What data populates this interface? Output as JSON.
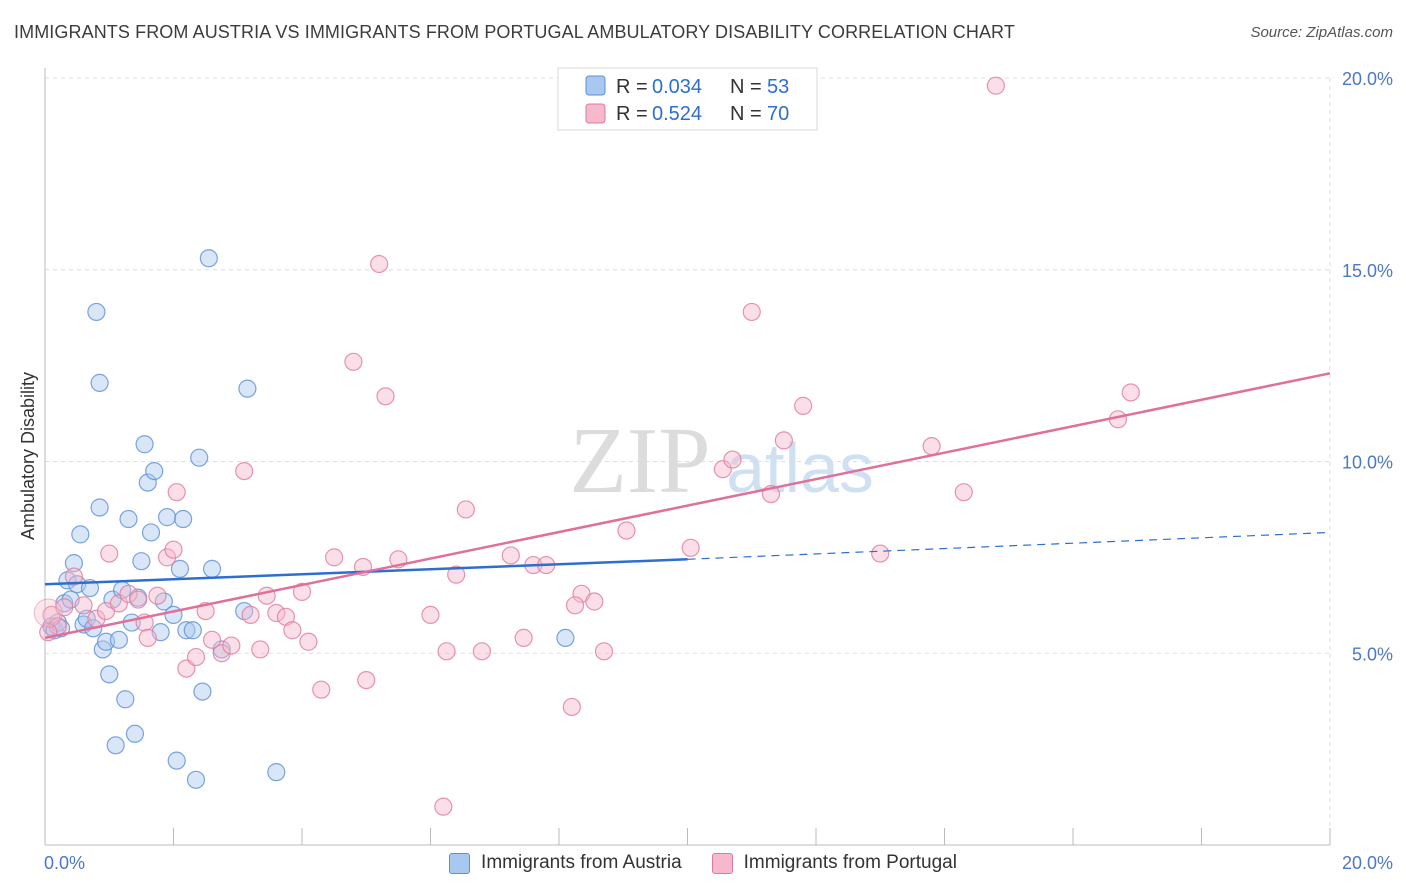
{
  "title": "IMMIGRANTS FROM AUSTRIA VS IMMIGRANTS FROM PORTUGAL AMBULATORY DISABILITY CORRELATION CHART",
  "source": "Source: ZipAtlas.com",
  "watermark": {
    "zip": "ZIP",
    "atlas": "atlas"
  },
  "colors": {
    "austria_fill": "#a9c8f0",
    "austria_stroke": "#5b8fd6",
    "austria_line": "#2c6fcf",
    "portugal_fill": "#f6b9cc",
    "portugal_stroke": "#e07a9c",
    "portugal_line": "#e0709a",
    "tick": "#4a78c4",
    "grid": "#dddddd"
  },
  "legend": {
    "austria": {
      "r_label": "R = ",
      "r": "0.034",
      "n_label": "N = ",
      "n": "53"
    },
    "portugal": {
      "r_label": "R = ",
      "r": "0.524",
      "n_label": "N = ",
      "n": "70"
    }
  },
  "chart_data": {
    "type": "scatter",
    "title": "IMMIGRANTS FROM AUSTRIA VS IMMIGRANTS FROM PORTUGAL AMBULATORY DISABILITY CORRELATION CHART",
    "xlabel": "",
    "ylabel": "Ambulatory Disability",
    "xlim": [
      0,
      20
    ],
    "ylim": [
      0,
      20
    ],
    "x_tick_labels": [
      "0.0%",
      "20.0%"
    ],
    "y_ticks": [
      5,
      10,
      15,
      20
    ],
    "y_tick_labels": [
      "5.0%",
      "10.0%",
      "15.0%",
      "20.0%"
    ],
    "grid": true,
    "legend_position": "top-center",
    "series": [
      {
        "name": "Immigrants from Austria",
        "trend": {
          "x": [
            0,
            10
          ],
          "y": [
            6.8,
            7.45
          ],
          "dashed_to": [
            20,
            8.15
          ]
        },
        "points": [
          [
            0.1,
            5.7
          ],
          [
            0.15,
            5.6
          ],
          [
            0.2,
            5.8
          ],
          [
            0.25,
            5.65
          ],
          [
            0.3,
            6.3
          ],
          [
            0.35,
            6.9
          ],
          [
            0.4,
            6.4
          ],
          [
            0.45,
            7.35
          ],
          [
            0.5,
            6.8
          ],
          [
            0.55,
            8.1
          ],
          [
            0.6,
            5.75
          ],
          [
            0.65,
            5.9
          ],
          [
            0.7,
            6.7
          ],
          [
            0.75,
            5.65
          ],
          [
            0.8,
            13.9
          ],
          [
            0.85,
            12.05
          ],
          [
            0.9,
            5.1
          ],
          [
            0.95,
            5.3
          ],
          [
            1.0,
            4.45
          ],
          [
            1.05,
            6.4
          ],
          [
            1.1,
            2.6
          ],
          [
            1.15,
            5.35
          ],
          [
            1.2,
            6.65
          ],
          [
            1.25,
            3.8
          ],
          [
            1.3,
            8.5
          ],
          [
            1.35,
            5.8
          ],
          [
            1.4,
            2.9
          ],
          [
            1.45,
            6.45
          ],
          [
            1.5,
            7.4
          ],
          [
            1.55,
            10.45
          ],
          [
            1.6,
            9.45
          ],
          [
            1.65,
            8.15
          ],
          [
            1.7,
            9.75
          ],
          [
            1.8,
            5.55
          ],
          [
            1.85,
            6.35
          ],
          [
            1.9,
            8.55
          ],
          [
            2.0,
            6.0
          ],
          [
            2.05,
            2.2
          ],
          [
            2.1,
            7.2
          ],
          [
            2.15,
            8.5
          ],
          [
            2.2,
            5.6
          ],
          [
            2.3,
            5.6
          ],
          [
            2.35,
            1.7
          ],
          [
            2.4,
            10.1
          ],
          [
            2.45,
            4.0
          ],
          [
            2.55,
            15.3
          ],
          [
            2.6,
            7.2
          ],
          [
            2.75,
            5.1
          ],
          [
            3.1,
            6.1
          ],
          [
            3.15,
            11.9
          ],
          [
            3.6,
            1.9
          ],
          [
            0.85,
            8.8
          ],
          [
            8.1,
            5.4
          ]
        ]
      },
      {
        "name": "Immigrants from Portugal",
        "trend": {
          "x": [
            0,
            20
          ],
          "y": [
            5.4,
            12.3
          ]
        },
        "points": [
          [
            0.1,
            6.0
          ],
          [
            0.2,
            5.7
          ],
          [
            0.3,
            6.2
          ],
          [
            0.45,
            7.0
          ],
          [
            0.6,
            6.25
          ],
          [
            0.8,
            5.9
          ],
          [
            0.95,
            6.1
          ],
          [
            1.0,
            7.6
          ],
          [
            1.15,
            6.3
          ],
          [
            1.3,
            6.55
          ],
          [
            1.45,
            6.4
          ],
          [
            1.55,
            5.8
          ],
          [
            1.6,
            5.4
          ],
          [
            1.75,
            6.5
          ],
          [
            1.9,
            7.5
          ],
          [
            2.0,
            7.7
          ],
          [
            2.05,
            9.2
          ],
          [
            2.2,
            4.6
          ],
          [
            2.35,
            4.9
          ],
          [
            2.5,
            6.1
          ],
          [
            2.6,
            5.35
          ],
          [
            2.75,
            5.0
          ],
          [
            2.9,
            5.2
          ],
          [
            3.1,
            9.75
          ],
          [
            3.2,
            6.0
          ],
          [
            3.35,
            5.1
          ],
          [
            3.45,
            6.5
          ],
          [
            3.6,
            6.05
          ],
          [
            3.75,
            5.95
          ],
          [
            3.85,
            5.6
          ],
          [
            4.0,
            6.6
          ],
          [
            4.1,
            5.3
          ],
          [
            4.3,
            4.05
          ],
          [
            4.5,
            7.5
          ],
          [
            4.8,
            12.6
          ],
          [
            5.0,
            4.3
          ],
          [
            5.2,
            15.15
          ],
          [
            5.3,
            11.7
          ],
          [
            5.5,
            7.45
          ],
          [
            6.0,
            6.0
          ],
          [
            6.25,
            5.05
          ],
          [
            6.4,
            7.05
          ],
          [
            6.55,
            8.75
          ],
          [
            6.8,
            5.05
          ],
          [
            7.25,
            7.55
          ],
          [
            7.45,
            5.4
          ],
          [
            7.6,
            7.3
          ],
          [
            7.8,
            7.3
          ],
          [
            8.2,
            3.6
          ],
          [
            8.35,
            6.55
          ],
          [
            8.55,
            6.35
          ],
          [
            8.7,
            5.05
          ],
          [
            9.05,
            8.2
          ],
          [
            10.05,
            7.75
          ],
          [
            10.55,
            9.8
          ],
          [
            10.7,
            10.05
          ],
          [
            11.0,
            13.9
          ],
          [
            11.3,
            9.15
          ],
          [
            11.5,
            10.55
          ],
          [
            11.8,
            11.45
          ],
          [
            13.0,
            7.6
          ],
          [
            13.8,
            10.4
          ],
          [
            14.3,
            9.2
          ],
          [
            14.8,
            19.8
          ],
          [
            16.7,
            11.1
          ],
          [
            16.9,
            11.8
          ],
          [
            6.2,
            1.0
          ],
          [
            8.25,
            6.25
          ],
          [
            4.95,
            7.25
          ],
          [
            0.05,
            5.55
          ]
        ]
      }
    ]
  }
}
